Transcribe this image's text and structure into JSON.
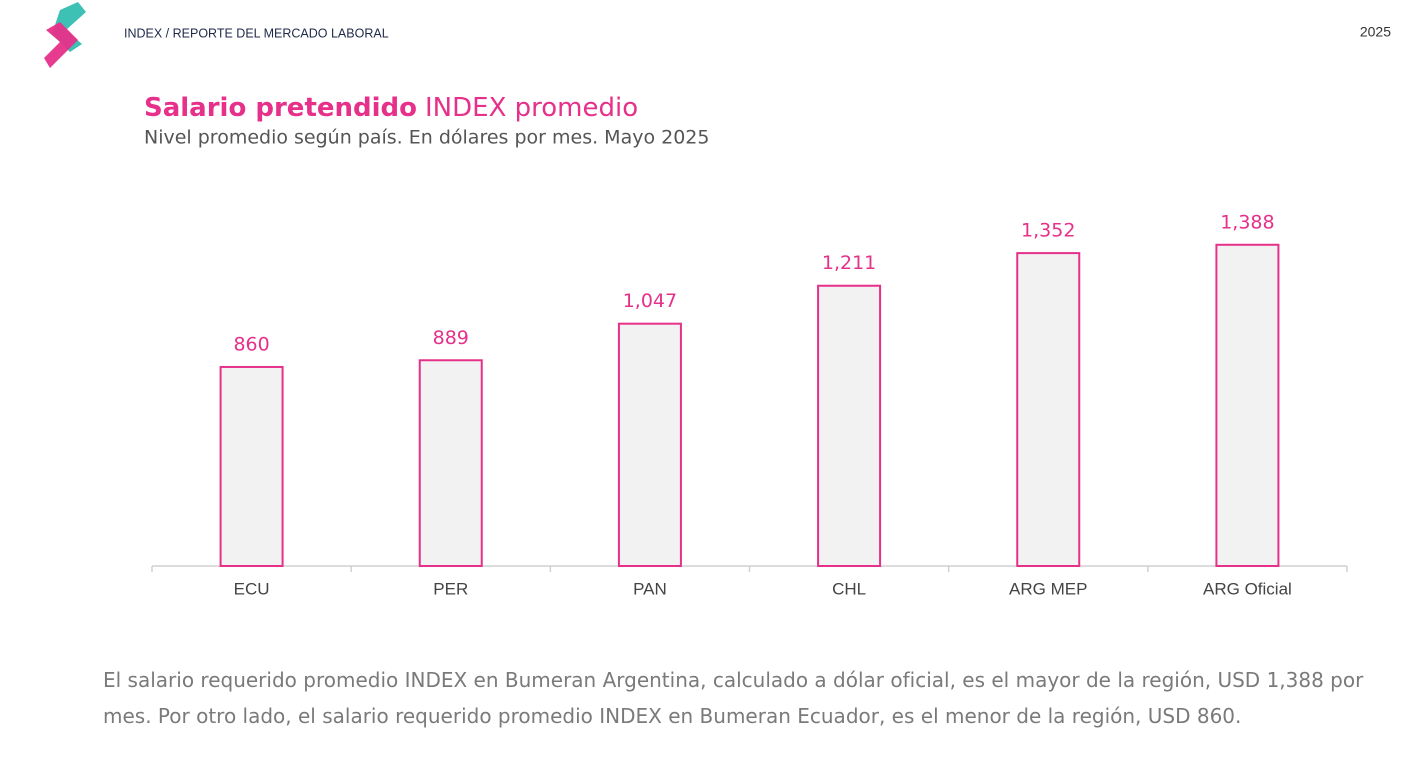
{
  "header": {
    "brand": "INDEX / REPORTE DEL MERCADO LABORAL",
    "year": "2025"
  },
  "chart_data": {
    "type": "bar",
    "title": [
      "Salario pretendido",
      "INDEX promedio"
    ],
    "subtitle": "Nivel promedio según país. En dólares por mes. Mayo 2025",
    "categories": [
      "ECU",
      "PER",
      "PAN",
      "CHL",
      "ARG MEP",
      "ARG Oficial"
    ],
    "values": [
      860,
      889,
      1047,
      1211,
      1352,
      1388
    ],
    "value_labels": [
      "860",
      "889",
      "1,047",
      "1,211",
      "1,352",
      "1,388"
    ],
    "color": "#e6308a",
    "fill": "#f2f2f2",
    "ylim": [
      0,
      1400
    ]
  },
  "footnote": "El salario requerido promedio INDEX en Bumeran Argentina, calculado a dólar oficial, es el mayor de la región, USD 1,388 por mes. Por otro lado, el salario requerido promedio INDEX en Bumeran Ecuador, es el menor de la región, USD 860."
}
